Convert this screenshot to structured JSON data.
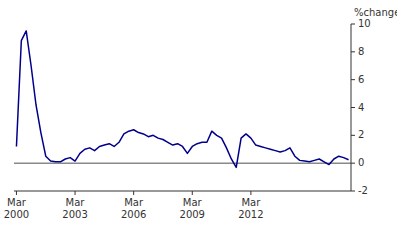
{
  "chart_data": {
    "type": "line",
    "ylabel": "%change",
    "categories": [
      "Mar\n2000",
      null,
      null,
      null,
      null,
      null,
      null,
      null,
      null,
      null,
      null,
      null,
      "Mar\n2003",
      null,
      null,
      null,
      null,
      null,
      null,
      null,
      null,
      null,
      null,
      null,
      "Mar\n2006",
      null,
      null,
      null,
      null,
      null,
      null,
      null,
      null,
      null,
      null,
      null,
      "Mar\n2009",
      null,
      null,
      null,
      null,
      null,
      null,
      null,
      null,
      null,
      null,
      null,
      "Mar\n2012",
      null,
      null,
      null,
      null,
      null,
      null,
      null,
      null,
      null,
      null,
      null,
      null,
      null,
      null,
      null,
      null,
      null,
      null,
      null,
      null
    ],
    "values": [
      1.2,
      8.8,
      9.5,
      7.0,
      4.2,
      2.2,
      0.5,
      0.15,
      0.1,
      0.1,
      0.3,
      0.4,
      0.15,
      0.7,
      1.0,
      1.1,
      0.9,
      1.2,
      1.3,
      1.4,
      1.2,
      1.5,
      2.1,
      2.3,
      2.4,
      2.2,
      2.1,
      1.9,
      2.0,
      1.8,
      1.7,
      1.5,
      1.3,
      1.4,
      1.2,
      0.7,
      1.2,
      1.4,
      1.5,
      1.5,
      2.3,
      2.0,
      1.8,
      1.1,
      0.3,
      -0.3,
      1.8,
      2.1,
      1.8,
      1.3,
      1.2,
      1.1,
      1.0,
      0.9,
      0.8,
      0.9,
      1.1,
      0.5,
      0.2,
      0.15,
      0.1,
      0.2,
      0.3,
      0.1,
      -0.1,
      0.3,
      0.5,
      0.4,
      0.25
    ],
    "color": "#00008B",
    "ylim": [
      -2,
      10
    ],
    "yticks": [
      -2,
      0,
      2,
      4,
      6,
      8,
      10
    ],
    "grid": false
  }
}
